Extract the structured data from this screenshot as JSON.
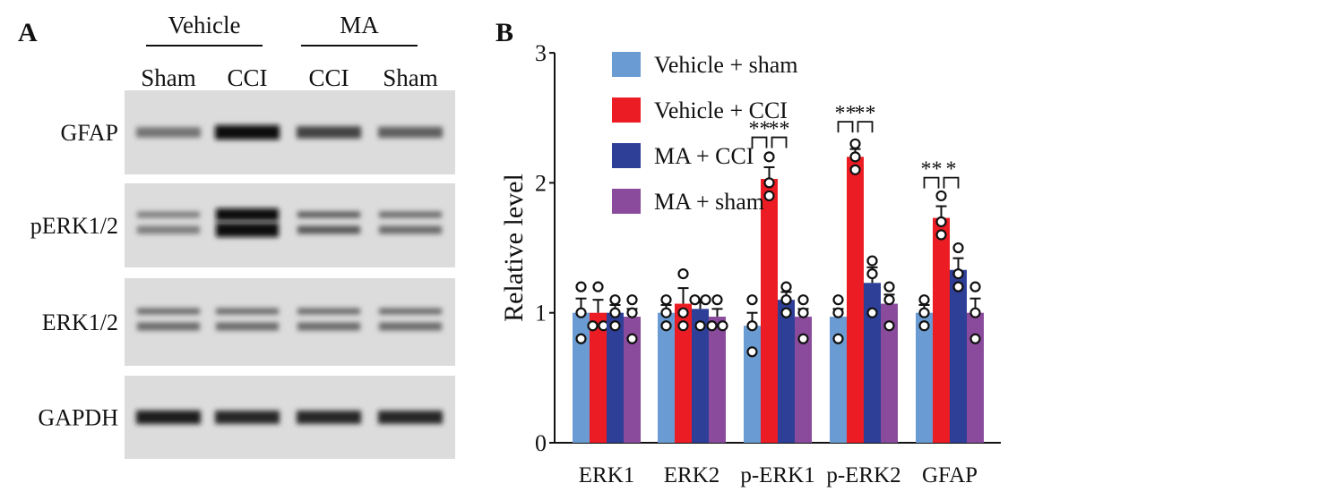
{
  "panel_a": {
    "label": "A",
    "groups": [
      {
        "name": "Vehicle",
        "lanes": [
          "Sham",
          "CCI"
        ]
      },
      {
        "name": "MA",
        "lanes": [
          "CCI",
          "Sham"
        ]
      }
    ],
    "blots": [
      {
        "name": "GFAP",
        "doublet": false,
        "intensity": [
          0.45,
          1.0,
          0.7,
          0.55
        ]
      },
      {
        "name": "pERK1/2",
        "doublet": true,
        "intensity": [
          0.4,
          1.0,
          0.6,
          0.5
        ]
      },
      {
        "name": "ERK1/2",
        "doublet": true,
        "intensity": [
          0.5,
          0.5,
          0.5,
          0.5
        ]
      },
      {
        "name": "GAPDH",
        "doublet": false,
        "intensity": [
          0.9,
          0.85,
          0.85,
          0.85
        ]
      }
    ]
  },
  "chart_data": {
    "type": "bar",
    "panel_label": "B",
    "ylabel": "Relative level",
    "xlabel": "",
    "ylim": [
      0,
      3
    ],
    "yticks": [
      "0",
      "1",
      "2",
      "3"
    ],
    "categories": [
      "ERK1",
      "ERK2",
      "p-ERK1",
      "p-ERK2",
      "GFAP"
    ],
    "legend_position": "top-left",
    "series": [
      {
        "name": "Vehicle + sham",
        "color": "#6a9bd2",
        "values": [
          1.0,
          1.0,
          0.9,
          0.97,
          1.0
        ],
        "errors": [
          0.11,
          0.06,
          0.1,
          0.06,
          0.06
        ],
        "points": [
          [
            1.2,
            1.0,
            0.8
          ],
          [
            1.1,
            1.0,
            0.9
          ],
          [
            1.1,
            0.9,
            0.7
          ],
          [
            1.1,
            1.0,
            0.8
          ],
          [
            1.1,
            1.0,
            0.9
          ]
        ]
      },
      {
        "name": "Vehicle + CCI",
        "color": "#ec1c24",
        "values": [
          1.0,
          1.07,
          2.03,
          2.2,
          1.73
        ],
        "errors": [
          0.1,
          0.12,
          0.09,
          0.06,
          0.09
        ],
        "points": [
          [
            1.2,
            0.9,
            0.9
          ],
          [
            1.3,
            1.0,
            0.9
          ],
          [
            2.2,
            2.0,
            1.9
          ],
          [
            2.3,
            2.2,
            2.1
          ],
          [
            1.9,
            1.7,
            1.6
          ]
        ]
      },
      {
        "name": "MA + CCI",
        "color": "#2e3f98",
        "values": [
          1.0,
          1.03,
          1.1,
          1.23,
          1.33
        ],
        "errors": [
          0.06,
          0.06,
          0.06,
          0.12,
          0.09
        ],
        "points": [
          [
            1.1,
            1.0,
            0.9
          ],
          [
            1.1,
            1.1,
            0.9
          ],
          [
            1.2,
            1.1,
            1.0
          ],
          [
            1.4,
            1.3,
            1.0
          ],
          [
            1.5,
            1.3,
            1.2
          ]
        ]
      },
      {
        "name": "MA + sham",
        "color": "#8a4b9c",
        "values": [
          0.97,
          0.97,
          0.97,
          1.07,
          1.0
        ],
        "errors": [
          0.06,
          0.06,
          0.06,
          0.07,
          0.11
        ],
        "points": [
          [
            1.1,
            1.0,
            0.8
          ],
          [
            1.1,
            0.9,
            0.9
          ],
          [
            1.1,
            1.0,
            0.8
          ],
          [
            1.2,
            1.1,
            0.9
          ],
          [
            1.2,
            1.0,
            0.8
          ]
        ]
      }
    ],
    "significance": [
      {
        "category": "p-ERK1",
        "from": 0,
        "to": 1,
        "label": "**",
        "y": 2.35
      },
      {
        "category": "p-ERK1",
        "from": 1,
        "to": 2,
        "label": "**",
        "y": 2.35
      },
      {
        "category": "p-ERK2",
        "from": 0,
        "to": 1,
        "label": "**",
        "y": 2.47
      },
      {
        "category": "p-ERK2",
        "from": 1,
        "to": 2,
        "label": "**",
        "y": 2.47
      },
      {
        "category": "GFAP",
        "from": 0,
        "to": 1,
        "label": "**",
        "y": 2.04
      },
      {
        "category": "GFAP",
        "from": 1,
        "to": 2,
        "label": "*",
        "y": 2.04
      }
    ]
  }
}
